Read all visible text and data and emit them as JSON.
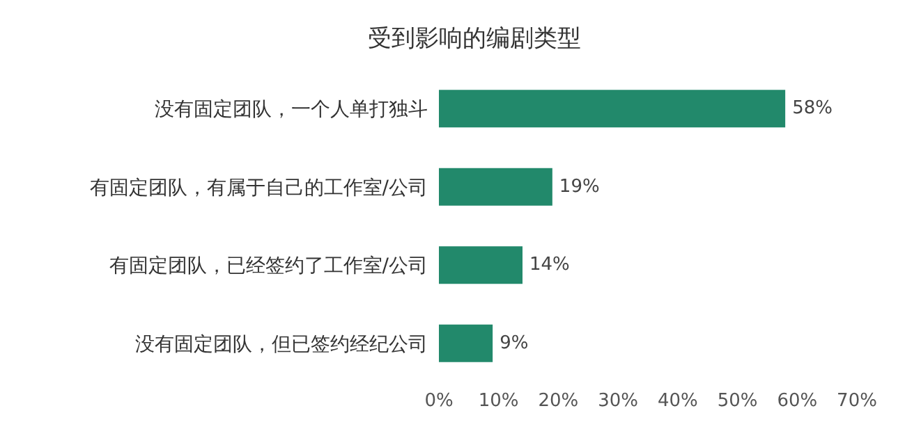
{
  "chart_data": {
    "type": "bar",
    "title": "受到影响的编剧类型",
    "orientation": "horizontal",
    "categories": [
      "没有固定团队，一个人单打独斗",
      "有固定团队，有属于自己的工作室/公司",
      "有固定团队，已经签约了工作室/公司",
      "没有固定团队，但已签约经纪公司"
    ],
    "values": [
      58,
      19,
      14,
      9
    ],
    "color": "#22896b",
    "value_labels": [
      "58%",
      "19%",
      "14%",
      "9%"
    ],
    "xlim": [
      0,
      70
    ],
    "xticks": [
      {
        "value": 0,
        "label": "0%"
      },
      {
        "value": 10,
        "label": "10%"
      },
      {
        "value": 20,
        "label": "20%"
      },
      {
        "value": 30,
        "label": "30%"
      },
      {
        "value": 40,
        "label": "40%"
      },
      {
        "value": 50,
        "label": "50%"
      },
      {
        "value": 60,
        "label": "60%"
      },
      {
        "value": 70,
        "label": "70%"
      }
    ],
    "grid": false,
    "legend": false
  }
}
